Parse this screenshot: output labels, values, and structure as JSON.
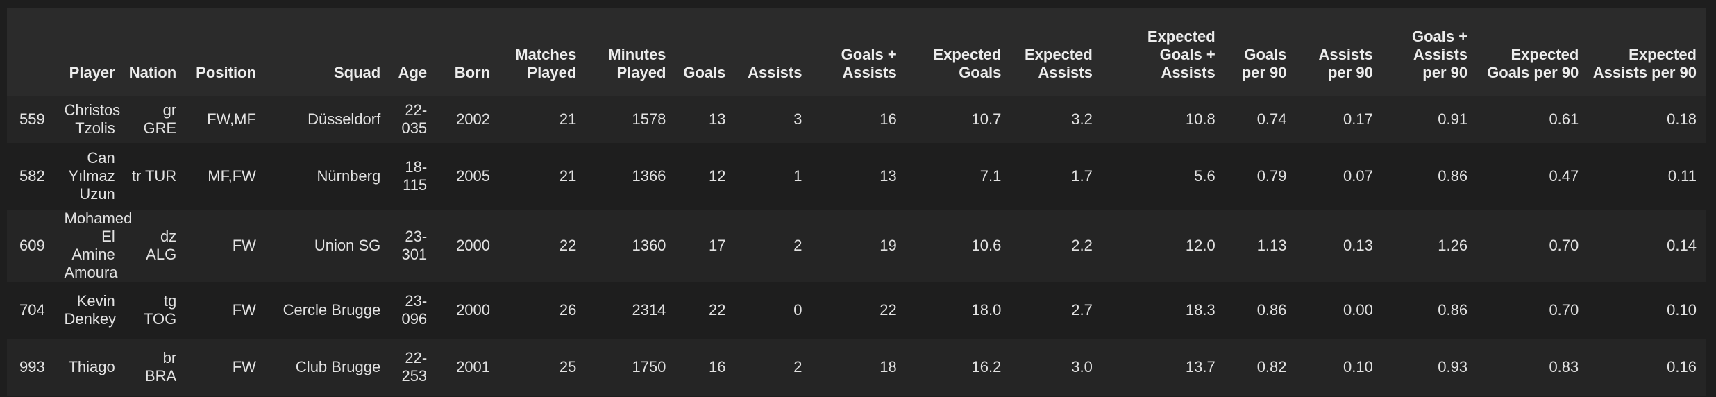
{
  "table": {
    "columns": [
      "",
      "Player",
      "Nation",
      "Position",
      "Squad",
      "Age",
      "Born",
      "Matches Played",
      "Minutes Played",
      "Goals",
      "Assists",
      "Goals + Assists",
      "Expected Goals",
      "Expected Assists",
      "Expected Goals + Assists",
      "Goals per 90",
      "Assists per 90",
      "Goals + Assists per 90",
      "Expected Goals per 90",
      "Expected Assists per 90"
    ],
    "rows": [
      [
        "559",
        "Christos Tzolis",
        "gr GRE",
        "FW,MF",
        "Düsseldorf",
        "22-035",
        "2002",
        "21",
        "1578",
        "13",
        "3",
        "16",
        "10.7",
        "3.2",
        "10.8",
        "0.74",
        "0.17",
        "0.91",
        "0.61",
        "0.18"
      ],
      [
        "582",
        "Can Yılmaz Uzun",
        "tr TUR",
        "MF,FW",
        "Nürnberg",
        "18-115",
        "2005",
        "21",
        "1366",
        "12",
        "1",
        "13",
        "7.1",
        "1.7",
        "5.6",
        "0.79",
        "0.07",
        "0.86",
        "0.47",
        "0.11"
      ],
      [
        "609",
        "Mohamed El Amine Amoura",
        "dz ALG",
        "FW",
        "Union SG",
        "23-301",
        "2000",
        "22",
        "1360",
        "17",
        "2",
        "19",
        "10.6",
        "2.2",
        "12.0",
        "1.13",
        "0.13",
        "1.26",
        "0.70",
        "0.14"
      ],
      [
        "704",
        "Kevin Denkey",
        "tg TOG",
        "FW",
        "Cercle Brugge",
        "23-096",
        "2000",
        "26",
        "2314",
        "22",
        "0",
        "22",
        "18.0",
        "2.7",
        "18.3",
        "0.86",
        "0.00",
        "0.86",
        "0.70",
        "0.10"
      ],
      [
        "993",
        "Thiago",
        "br BRA",
        "FW",
        "Club Brugge",
        "22-253",
        "2001",
        "25",
        "1750",
        "16",
        "2",
        "18",
        "16.2",
        "3.0",
        "13.7",
        "0.82",
        "0.10",
        "0.93",
        "0.83",
        "0.16"
      ]
    ]
  }
}
